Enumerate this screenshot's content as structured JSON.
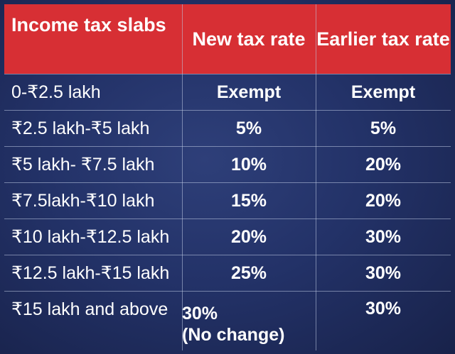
{
  "header": {
    "col1": "Income tax slabs",
    "col2": "New tax rate",
    "col3": "Earlier tax rate"
  },
  "rows": [
    {
      "slab": "0-₹2.5 lakh",
      "new_rate": "Exempt",
      "earlier_rate": "Exempt"
    },
    {
      "slab": "₹2.5 lakh-₹5 lakh",
      "new_rate": "5%",
      "earlier_rate": "5%"
    },
    {
      "slab": "₹5 lakh- ₹7.5 lakh",
      "new_rate": "10%",
      "earlier_rate": "20%"
    },
    {
      "slab": "₹7.5lakh-₹10 lakh",
      "new_rate": "15%",
      "earlier_rate": "20%"
    },
    {
      "slab": "₹10 lakh-₹12.5 lakh",
      "new_rate": "20%",
      "earlier_rate": "30%"
    },
    {
      "slab": "₹12.5 lakh-₹15 lakh",
      "new_rate": "25%",
      "earlier_rate": "30%"
    },
    {
      "slab": "₹15 lakh and above",
      "new_rate": "30%",
      "new_rate_note": "(No change)",
      "earlier_rate": "30%"
    }
  ],
  "colors": {
    "header_bg": "#d72f34",
    "body_bg": "#1f2c5e",
    "text": "#ffffff"
  }
}
